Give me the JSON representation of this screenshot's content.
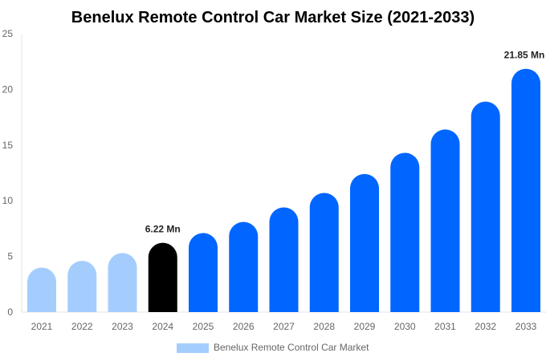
{
  "chart_data": {
    "type": "bar",
    "title": "Benelux Remote Control Car Market Size (2021-2033)",
    "categories": [
      "2021",
      "2022",
      "2023",
      "2024",
      "2025",
      "2026",
      "2027",
      "2028",
      "2029",
      "2030",
      "2031",
      "2032",
      "2033"
    ],
    "series": [
      {
        "name": "Benelux Remote Control Car Market",
        "values": [
          4.0,
          4.6,
          5.3,
          6.22,
          7.1,
          8.1,
          9.4,
          10.7,
          12.4,
          14.3,
          16.4,
          18.9,
          21.85
        ]
      }
    ],
    "data_labels": {
      "3": "6.22 Mn",
      "12": "21.85 Mn"
    },
    "ylim": [
      0,
      25
    ],
    "yticks": [
      0,
      5,
      10,
      15,
      20,
      25
    ],
    "xlabel": "",
    "ylabel": "",
    "grid": false,
    "legend_position": "bottom",
    "colors": {
      "historical": "#a4cdfd",
      "base_year": "#000000",
      "forecast": "#0066ff",
      "legend_swatch": "#a4cdfd"
    }
  }
}
